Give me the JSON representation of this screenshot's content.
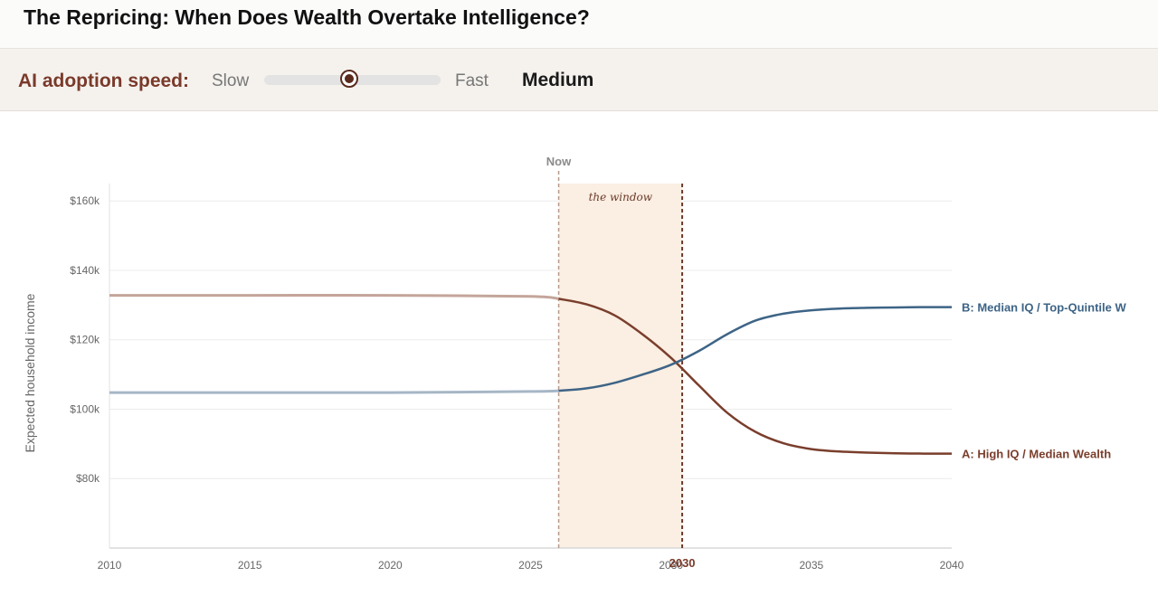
{
  "header": {
    "title": "The Repricing: When Does Wealth Overtake Intelligence?"
  },
  "controls": {
    "label": "AI adoption speed:",
    "min_label": "Slow",
    "max_label": "Fast",
    "value_label": "Medium",
    "slider_fraction": 0.5
  },
  "colors": {
    "series_a": "#7a3e2c",
    "series_a_past": "#c4a59a",
    "series_b": "#3d6486",
    "series_b_past": "#a6b6c6",
    "window_fill": "#fbeee2",
    "marker_now": "#b79a8b",
    "marker_2030": "#6b3a2a"
  },
  "chart_data": {
    "type": "line",
    "ylabel": "Expected household income",
    "xlim": [
      2010,
      2040
    ],
    "ylim": [
      60000,
      165000
    ],
    "x_ticks": [
      2010,
      2015,
      2020,
      2025,
      2030,
      2035,
      2040
    ],
    "x_tick_labels": [
      "2010",
      "2015",
      "2020",
      "2025",
      "2030",
      "2035",
      "2040"
    ],
    "y_ticks": [
      80000,
      100000,
      120000,
      140000,
      160000
    ],
    "y_tick_labels": [
      "$80k",
      "$100k",
      "$120k",
      "$140k",
      "$160k"
    ],
    "grid": true,
    "now": {
      "year": 2026,
      "label": "Now"
    },
    "window": {
      "start": 2026,
      "end": 2030.4,
      "label": "the window"
    },
    "crossover": {
      "year": 2030.4,
      "label": "2030"
    },
    "series": [
      {
        "name": "A: High IQ / Median Wealth",
        "x": [
          2010,
          2015,
          2020,
          2025,
          2026,
          2027,
          2028,
          2029,
          2030,
          2031,
          2032,
          2033,
          2034,
          2035,
          2036,
          2037,
          2038,
          2039,
          2040
        ],
        "values": [
          132800,
          132800,
          132800,
          132500,
          131800,
          130200,
          127000,
          121500,
          114800,
          106800,
          99000,
          93500,
          90200,
          88500,
          87800,
          87500,
          87300,
          87200,
          87200
        ]
      },
      {
        "name": "B: Median IQ / Top-Quintile W",
        "x": [
          2010,
          2015,
          2020,
          2025,
          2026,
          2027,
          2028,
          2029,
          2030,
          2031,
          2032,
          2033,
          2034,
          2035,
          2036,
          2037,
          2038,
          2039,
          2040
        ],
        "values": [
          104800,
          104800,
          104800,
          105100,
          105300,
          106000,
          107600,
          110000,
          112800,
          116800,
          121600,
          125500,
          127500,
          128500,
          129000,
          129200,
          129300,
          129400,
          129400
        ]
      }
    ]
  }
}
